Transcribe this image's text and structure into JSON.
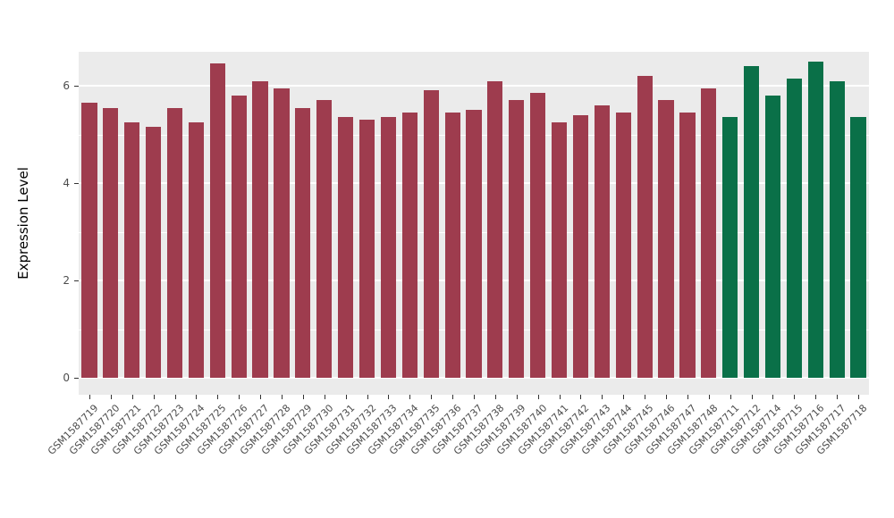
{
  "chart_data": {
    "type": "bar",
    "title": "",
    "xlabel": "",
    "ylabel": "Expression Level",
    "ylim": [
      0,
      6.7
    ],
    "yticks": [
      0,
      2,
      4,
      6
    ],
    "yticks_minor": [
      1,
      3,
      5
    ],
    "grid": true,
    "legend": false,
    "panel_bg": "#ebebeb",
    "grid_color": "#ffffff",
    "group_colors": {
      "control": "#9e3c4e",
      "case": "#0a7048"
    },
    "bars": [
      {
        "label": "GSM1587719",
        "value": 5.65,
        "group": "control"
      },
      {
        "label": "GSM1587720",
        "value": 5.55,
        "group": "control"
      },
      {
        "label": "GSM1587721",
        "value": 5.25,
        "group": "control"
      },
      {
        "label": "GSM1587722",
        "value": 5.15,
        "group": "control"
      },
      {
        "label": "GSM1587723",
        "value": 5.55,
        "group": "control"
      },
      {
        "label": "GSM1587724",
        "value": 5.25,
        "group": "control"
      },
      {
        "label": "GSM1587725",
        "value": 6.45,
        "group": "control"
      },
      {
        "label": "GSM1587726",
        "value": 5.8,
        "group": "control"
      },
      {
        "label": "GSM1587727",
        "value": 6.1,
        "group": "control"
      },
      {
        "label": "GSM1587728",
        "value": 5.95,
        "group": "control"
      },
      {
        "label": "GSM1587729",
        "value": 5.55,
        "group": "control"
      },
      {
        "label": "GSM1587730",
        "value": 5.7,
        "group": "control"
      },
      {
        "label": "GSM1587731",
        "value": 5.35,
        "group": "control"
      },
      {
        "label": "GSM1587732",
        "value": 5.3,
        "group": "control"
      },
      {
        "label": "GSM1587733",
        "value": 5.35,
        "group": "control"
      },
      {
        "label": "GSM1587734",
        "value": 5.45,
        "group": "control"
      },
      {
        "label": "GSM1587735",
        "value": 5.9,
        "group": "control"
      },
      {
        "label": "GSM1587736",
        "value": 5.45,
        "group": "control"
      },
      {
        "label": "GSM1587737",
        "value": 5.5,
        "group": "control"
      },
      {
        "label": "GSM1587738",
        "value": 6.1,
        "group": "control"
      },
      {
        "label": "GSM1587739",
        "value": 5.7,
        "group": "control"
      },
      {
        "label": "GSM1587740",
        "value": 5.85,
        "group": "control"
      },
      {
        "label": "GSM1587741",
        "value": 5.25,
        "group": "control"
      },
      {
        "label": "GSM1587742",
        "value": 5.4,
        "group": "control"
      },
      {
        "label": "GSM1587743",
        "value": 5.6,
        "group": "control"
      },
      {
        "label": "GSM1587744",
        "value": 5.45,
        "group": "control"
      },
      {
        "label": "GSM1587745",
        "value": 6.2,
        "group": "control"
      },
      {
        "label": "GSM1587746",
        "value": 5.7,
        "group": "control"
      },
      {
        "label": "GSM1587747",
        "value": 5.45,
        "group": "control"
      },
      {
        "label": "GSM1587748",
        "value": 5.95,
        "group": "control"
      },
      {
        "label": "GSM1587711",
        "value": 5.35,
        "group": "case"
      },
      {
        "label": "GSM1587712",
        "value": 6.4,
        "group": "case"
      },
      {
        "label": "GSM1587714",
        "value": 5.8,
        "group": "case"
      },
      {
        "label": "GSM1587715",
        "value": 6.15,
        "group": "case"
      },
      {
        "label": "GSM1587716",
        "value": 6.5,
        "group": "case"
      },
      {
        "label": "GSM1587717",
        "value": 6.1,
        "group": "case"
      },
      {
        "label": "GSM1587718",
        "value": 5.35,
        "group": "case"
      }
    ]
  }
}
